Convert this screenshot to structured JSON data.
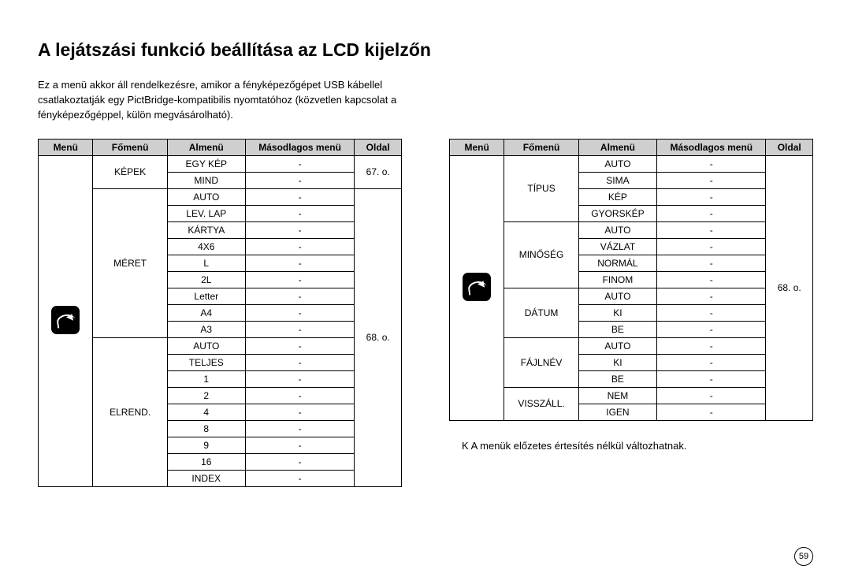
{
  "title": "A lejátszási funkció beállítása az LCD kijelzőn",
  "intro": "Ez a menü akkor áll rendelkezésre, amikor a fényképezőgépet USB kábellel csatlakoztatják egy PictBridge-kompatibilis nyomtatóhoz (közvetlen kapcsolat a fényképezőgéppel, külön megvásárolható).",
  "headers": {
    "menu": "Menü",
    "fomenu": "Főmenü",
    "almenu": "Almenü",
    "masodlagos": "Másodlagos menü",
    "oldal": "Oldal"
  },
  "table1": {
    "rows": [
      {
        "fomenu": "KÉPEK",
        "almenu": "EGY KÉP",
        "masod": "-",
        "oldal": "67. o."
      },
      {
        "almenu": "MIND",
        "masod": "-"
      },
      {
        "fomenu": "MÉRET",
        "almenu": "AUTO",
        "masod": "-",
        "oldal": "68. o."
      },
      {
        "almenu": "LEV. LAP",
        "masod": "-"
      },
      {
        "almenu": "KÁRTYA",
        "masod": "-"
      },
      {
        "almenu": "4X6",
        "masod": "-"
      },
      {
        "almenu": "L",
        "masod": "-"
      },
      {
        "almenu": "2L",
        "masod": "-"
      },
      {
        "almenu": "Letter",
        "masod": "-"
      },
      {
        "almenu": "A4",
        "masod": "-"
      },
      {
        "almenu": "A3",
        "masod": "-"
      },
      {
        "fomenu": "ELREND.",
        "almenu": "AUTO",
        "masod": "-"
      },
      {
        "almenu": "TELJES",
        "masod": "-"
      },
      {
        "almenu": "1",
        "masod": "-"
      },
      {
        "almenu": "2",
        "masod": "-"
      },
      {
        "almenu": "4",
        "masod": "-"
      },
      {
        "almenu": "8",
        "masod": "-"
      },
      {
        "almenu": "9",
        "masod": "-"
      },
      {
        "almenu": "16",
        "masod": "-"
      },
      {
        "almenu": "INDEX",
        "masod": "-"
      }
    ]
  },
  "table2": {
    "rows": [
      {
        "fomenu": "TÍPUS",
        "almenu": "AUTO",
        "masod": "-",
        "oldal": "68. o."
      },
      {
        "almenu": "SIMA",
        "masod": "-"
      },
      {
        "almenu": "KÉP",
        "masod": "-"
      },
      {
        "almenu": "GYORSKÉP",
        "masod": "-"
      },
      {
        "fomenu": "MINŐSÉG",
        "almenu": "AUTO",
        "masod": "-"
      },
      {
        "almenu": "VÁZLAT",
        "masod": "-"
      },
      {
        "almenu": "NORMÁL",
        "masod": "-"
      },
      {
        "almenu": "FINOM",
        "masod": "-"
      },
      {
        "fomenu": "DÁTUM",
        "almenu": "AUTO",
        "masod": "-"
      },
      {
        "almenu": "KI",
        "masod": "-"
      },
      {
        "almenu": "BE",
        "masod": "-"
      },
      {
        "fomenu": "FÁJLNÉV",
        "almenu": "AUTO",
        "masod": "-"
      },
      {
        "almenu": "KI",
        "masod": "-"
      },
      {
        "almenu": "BE",
        "masod": "-"
      },
      {
        "fomenu": "VISSZÁLL.",
        "almenu": "NEM",
        "masod": "-"
      },
      {
        "almenu": "IGEN",
        "masod": "-"
      }
    ]
  },
  "note": "K A menük előzetes értesítés nélkül változhatnak.",
  "page_number": "59"
}
